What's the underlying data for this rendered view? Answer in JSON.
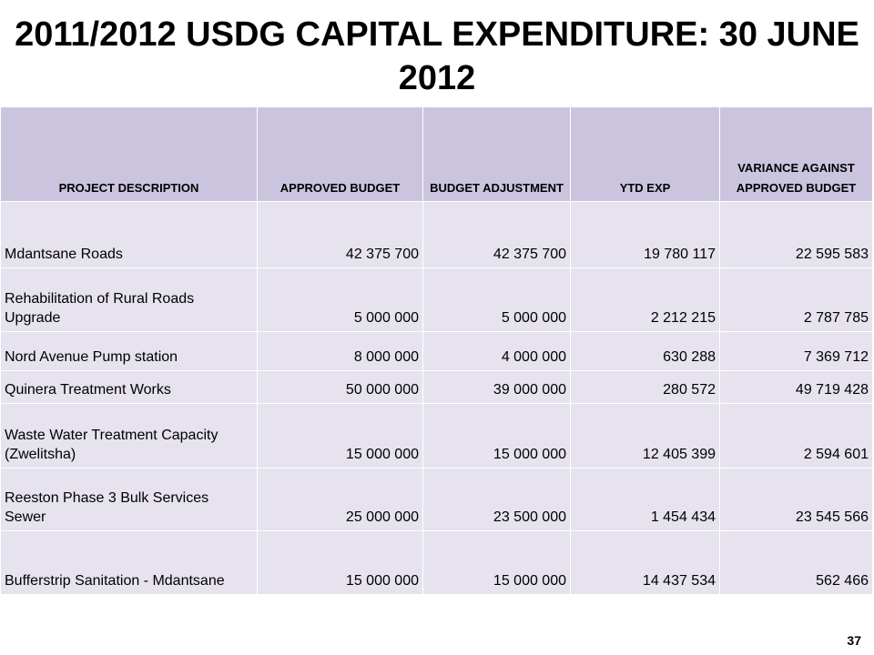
{
  "title": "2011/2012 USDG CAPITAL EXPENDITURE: 30 JUNE 2012",
  "table": {
    "columns": [
      "PROJECT DESCRIPTION",
      "APPROVED BUDGET",
      "BUDGET ADJUSTMENT",
      "YTD EXP",
      "VARIANCE AGAINST APPROVED BUDGET"
    ],
    "rows": [
      {
        "description": "Mdantsane Roads",
        "approved": "42 375 700",
        "adjustment": "42 375 700",
        "ytd": "19 780 117",
        "variance": "22 595 583"
      },
      {
        "description": "Rehabilitation of Rural Roads Upgrade",
        "approved": "5 000 000",
        "adjustment": "5 000 000",
        "ytd": "2 212 215",
        "variance": "2 787 785"
      },
      {
        "description": "Nord Avenue Pump station",
        "approved": "8 000 000",
        "adjustment": "4 000 000",
        "ytd": "630 288",
        "variance": "7 369 712"
      },
      {
        "description": "Quinera Treatment Works",
        "approved": "50 000 000",
        "adjustment": "39 000 000",
        "ytd": "280 572",
        "variance": "49 719 428"
      },
      {
        "description": "Waste Water Treatment Capacity (Zwelitsha)",
        "approved": "15 000 000",
        "adjustment": "15 000 000",
        "ytd": "12 405 399",
        "variance": "2 594 601"
      },
      {
        "description": "Reeston Phase 3 Bulk Services Sewer",
        "approved": "25 000 000",
        "adjustment": "23 500 000",
        "ytd": "1 454 434",
        "variance": "23 545 566"
      },
      {
        "description": "Bufferstrip Sanitation - Mdantsane",
        "approved": "15 000 000",
        "adjustment": "15 000 000",
        "ytd": "14 437 534",
        "variance": "562 466"
      }
    ]
  },
  "page_number": "37"
}
